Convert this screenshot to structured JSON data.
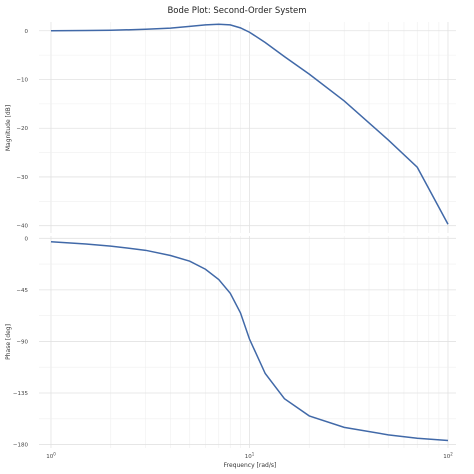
{
  "chart_data": {
    "type": "line",
    "title": "Bode Plot: Second-Order System",
    "xlabel": "Frequency [rad/s]",
    "xscale": "log",
    "xlim": [
      1,
      100
    ],
    "x_ticks": [
      {
        "value": 1,
        "base": "10",
        "exp": "0"
      },
      {
        "value": 10,
        "base": "10",
        "exp": "1"
      },
      {
        "value": 100,
        "base": "10",
        "exp": "2"
      }
    ],
    "grid": true,
    "line_color": "#4169a8",
    "panels": [
      {
        "name": "magnitude",
        "ylabel": "Magnitude [dB]",
        "ylim": [
          -41.5,
          1.8
        ],
        "yticks": [
          0,
          -10,
          -20,
          -30,
          -40
        ],
        "ytick_labels": [
          "0",
          "−10",
          "−20",
          "−30",
          "−40"
        ],
        "series": {
          "x": [
            1,
            1.5,
            2,
            3,
            4,
            5,
            6,
            7,
            8,
            9,
            10,
            12,
            15,
            20,
            30,
            50,
            70,
            100
          ],
          "y": [
            0.0,
            0.05,
            0.1,
            0.3,
            0.55,
            0.9,
            1.2,
            1.35,
            1.2,
            0.6,
            -0.3,
            -2.4,
            -5.3,
            -8.9,
            -14.4,
            -22.4,
            -28.0,
            -39.7
          ]
        }
      },
      {
        "name": "phase",
        "ylabel": "Phase [deg]",
        "ylim": [
          -183,
          2
        ],
        "yticks": [
          0,
          -45,
          -90,
          -135,
          -180
        ],
        "ytick_labels": [
          "0",
          "−45",
          "−90",
          "−135",
          "−180"
        ],
        "series": {
          "x": [
            1,
            1.5,
            2,
            3,
            4,
            5,
            6,
            7,
            8,
            9,
            10,
            12,
            15,
            20,
            30,
            50,
            70,
            100
          ],
          "y": [
            -3,
            -5,
            -6.8,
            -10.5,
            -15,
            -20,
            -27,
            -36,
            -48,
            -65,
            -88,
            -118,
            -140,
            -155,
            -165,
            -171.5,
            -174.5,
            -176.5
          ]
        }
      }
    ]
  }
}
